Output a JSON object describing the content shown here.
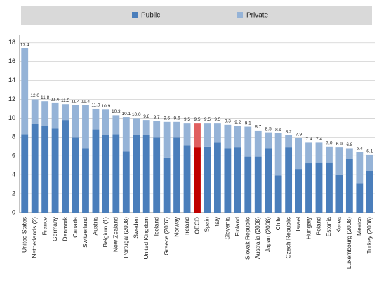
{
  "chart_data": {
    "type": "stacked_bar",
    "categories": [
      "United States",
      "Netherlands (2)",
      "France",
      "Germany",
      "Denmark",
      "Canada",
      "Switzerland",
      "Austria",
      "Belgium (1)",
      "New Zealand",
      "Portugal (2008)",
      "Sweden",
      "United Kingdom",
      "Iceland",
      "Greece (2007)",
      "Norway",
      "Ireland",
      "OECD",
      "Spain",
      "Italy",
      "Slovenia",
      "Finland",
      "Slovak Republic",
      "Australia (2008)",
      "Japan (2008)",
      "Chile",
      "Czech Republic",
      "Israel",
      "Hungary",
      "Poland",
      "Estonia",
      "Korea",
      "Luxembourg (2008)",
      "Mexico",
      "Turkey (2008)"
    ],
    "series": [
      {
        "name": "Public",
        "color": "#4a7ebb",
        "values": [
          8.3,
          9.4,
          9.2,
          8.9,
          9.8,
          8.0,
          6.8,
          8.8,
          8.2,
          8.3,
          6.5,
          8.2,
          8.2,
          8.0,
          5.8,
          8.0,
          7.1,
          6.9,
          7.0,
          7.4,
          6.8,
          6.9,
          5.9,
          5.9,
          6.8,
          3.9,
          6.9,
          4.6,
          5.2,
          5.3,
          5.3,
          4.0,
          5.7,
          3.1,
          4.4
        ]
      },
      {
        "name": "Private",
        "color": "#95b3d7",
        "values": [
          9.1,
          2.6,
          2.6,
          2.7,
          1.7,
          3.4,
          4.6,
          2.2,
          2.7,
          2.0,
          3.6,
          1.8,
          1.6,
          1.7,
          3.8,
          1.6,
          2.4,
          2.6,
          2.5,
          2.1,
          2.5,
          2.3,
          3.2,
          2.8,
          1.7,
          4.5,
          1.3,
          3.3,
          2.2,
          2.1,
          1.7,
          2.9,
          1.1,
          3.3,
          1.7
        ]
      }
    ],
    "totals": [
      17.4,
      12.0,
      11.8,
      11.6,
      11.5,
      11.4,
      11.4,
      11.0,
      10.9,
      10.3,
      10.1,
      10.0,
      9.8,
      9.7,
      9.6,
      9.6,
      9.5,
      9.5,
      9.5,
      9.5,
      9.3,
      9.2,
      9.1,
      8.7,
      8.5,
      8.4,
      8.2,
      7.9,
      7.4,
      7.4,
      7.0,
      6.9,
      6.8,
      6.4,
      6.1
    ],
    "value_labels": [
      "17.4",
      "12.0",
      "11.8",
      "11.6",
      "11.5",
      "11.4",
      "11.4",
      "11.0",
      "10.9",
      "10.3",
      "10.1",
      "10.0",
      "9.8",
      "9.7",
      "9.6",
      "9.6",
      "9.5",
      "9.5",
      "9.5",
      "9.5",
      "9.3",
      "9.2",
      "9.1",
      "8.7",
      "8.5",
      "8.4",
      "8.2",
      "7.9",
      "7.4",
      "7.4",
      "7.0",
      "6.9",
      "6.8",
      "6.4",
      "6.1"
    ],
    "highlight": {
      "index": 17,
      "colors": [
        "#c00000",
        "#e06060"
      ]
    },
    "ylim": [
      0,
      18.8
    ],
    "yticks": [
      0,
      2,
      4,
      6,
      8,
      10,
      12,
      14,
      16,
      18
    ],
    "grid": true,
    "legend": "top"
  }
}
